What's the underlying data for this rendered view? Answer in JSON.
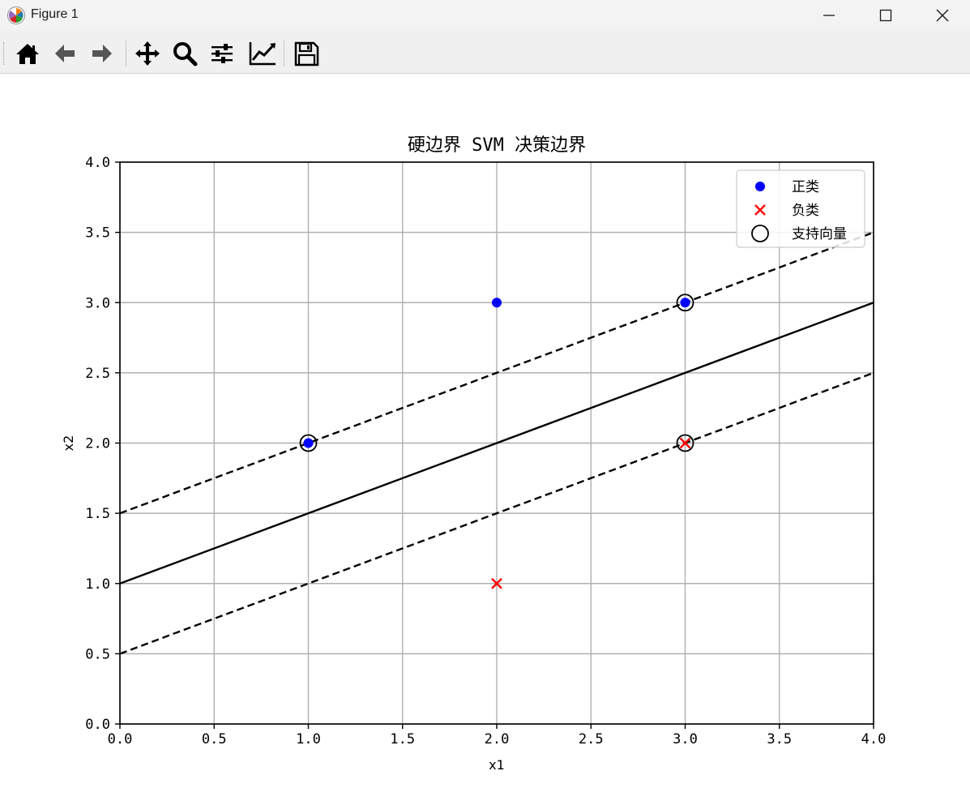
{
  "window": {
    "title": "Figure 1",
    "controls": [
      "minimize",
      "maximize",
      "close"
    ]
  },
  "toolbar": {
    "buttons": [
      {
        "name": "home",
        "icon": "home-icon"
      },
      {
        "name": "back",
        "icon": "arrow-left-icon"
      },
      {
        "name": "forward",
        "icon": "arrow-right-icon"
      },
      {
        "name": "pan",
        "icon": "move-icon"
      },
      {
        "name": "zoom",
        "icon": "magnifier-icon"
      },
      {
        "name": "configure-subplots",
        "icon": "sliders-icon"
      },
      {
        "name": "edit-axis",
        "icon": "line-chart-icon"
      },
      {
        "name": "save",
        "icon": "floppy-disk-icon"
      }
    ]
  },
  "chart_data": {
    "type": "scatter",
    "title": "硬边界 SVM 决策边界",
    "xlabel": "x1",
    "ylabel": "x2",
    "xlim": [
      0.0,
      4.0
    ],
    "ylim": [
      0.0,
      4.0
    ],
    "xticks": [
      "0.0",
      "0.5",
      "1.0",
      "1.5",
      "2.0",
      "2.5",
      "3.0",
      "3.5",
      "4.0"
    ],
    "yticks": [
      "0.0",
      "0.5",
      "1.0",
      "1.5",
      "2.0",
      "2.5",
      "3.0",
      "3.5",
      "4.0"
    ],
    "grid": true,
    "legend_position": "top-right",
    "series": [
      {
        "name": "正类",
        "marker": "circle",
        "color": "#0000ff",
        "x": [
          1.0,
          2.0,
          3.0
        ],
        "y": [
          2.0,
          3.0,
          3.0
        ]
      },
      {
        "name": "负类",
        "marker": "x",
        "color": "#ff0000",
        "x": [
          2.0,
          3.0
        ],
        "y": [
          1.0,
          2.0
        ]
      },
      {
        "name": "支持向量",
        "marker": "hollow-circle",
        "color": "#000000",
        "x": [
          1.0,
          3.0,
          3.0
        ],
        "y": [
          2.0,
          3.0,
          2.0
        ]
      }
    ],
    "lines": [
      {
        "role": "decision-boundary",
        "style": "solid",
        "color": "#000000",
        "x": [
          0.0,
          4.0
        ],
        "y": [
          1.0,
          3.0
        ]
      },
      {
        "role": "upper-margin",
        "style": "dashed",
        "color": "#000000",
        "x": [
          0.0,
          4.0
        ],
        "y": [
          1.5,
          3.5
        ]
      },
      {
        "role": "lower-margin",
        "style": "dashed",
        "color": "#000000",
        "x": [
          0.0,
          4.0
        ],
        "y": [
          0.5,
          2.5
        ]
      }
    ]
  }
}
